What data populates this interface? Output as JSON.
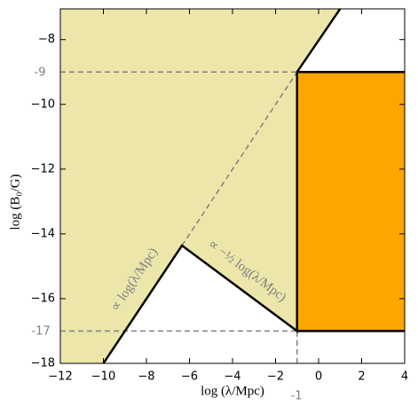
{
  "chart_data": {
    "type": "region",
    "x_label": "log (λ/Mpc)",
    "y_label": "log (B₀/G)",
    "xlim": [
      -12,
      4
    ],
    "ylim": [
      -18,
      -7.05
    ],
    "xticks": [
      {
        "value": -12,
        "label": "−12"
      },
      {
        "value": -10,
        "label": "−10"
      },
      {
        "value": -8,
        "label": "−8"
      },
      {
        "value": -6,
        "label": "−6"
      },
      {
        "value": -4,
        "label": "−4"
      },
      {
        "value": -2,
        "label": "−2"
      },
      0,
      2,
      4
    ],
    "yticks": [
      {
        "value": -18,
        "label": "−18"
      },
      {
        "value": -16,
        "label": "−16"
      },
      {
        "value": -14,
        "label": "−14"
      },
      {
        "value": -12,
        "label": "−12"
      },
      {
        "value": -10,
        "label": "−10"
      },
      {
        "value": -8,
        "label": "−8"
      }
    ],
    "regions": [
      {
        "color": "#ede6ab",
        "x": [
          -12,
          1,
          -1,
          -1,
          -6.35,
          -10,
          -12
        ],
        "y": [
          -7.05,
          -7.05,
          -9,
          -17,
          -14.36,
          -18,
          -18
        ]
      },
      {
        "color": "#ffa500",
        "x": [
          -1,
          4,
          4,
          -1
        ],
        "y": [
          -17,
          -17,
          -9,
          -9
        ]
      }
    ],
    "lines": [
      {
        "color": "#808080",
        "dashed": true,
        "x": [
          -12,
          -1
        ],
        "y": [
          -9,
          -9
        ]
      },
      {
        "color": "#808080",
        "dashed": true,
        "x": [
          -12,
          -1
        ],
        "y": [
          -17,
          -17
        ]
      },
      {
        "color": "#808080",
        "dashed": true,
        "x": [
          -6.35,
          -1
        ],
        "y": [
          -14.36,
          -9
        ]
      },
      {
        "color": "#808080",
        "dashed": true,
        "x": [
          -1,
          -1
        ],
        "y": [
          -18,
          -17
        ]
      },
      {
        "color": "#000000",
        "dashed": false,
        "x": [
          -10,
          -6.35,
          -1,
          -1,
          1
        ],
        "y": [
          -18,
          -14.36,
          -17,
          -9,
          -7.05
        ]
      },
      {
        "color": "#000000",
        "dashed": false,
        "x": [
          -1,
          4
        ],
        "y": [
          -9,
          -9
        ]
      },
      {
        "color": "#000000",
        "dashed": false,
        "x": [
          -1,
          4
        ],
        "y": [
          -17,
          -17
        ]
      }
    ],
    "annotations": [
      "-9",
      "-17",
      "-1",
      "∝ log(λ/Mpc)",
      "∝ −½ log(λ/Mpc)"
    ]
  }
}
